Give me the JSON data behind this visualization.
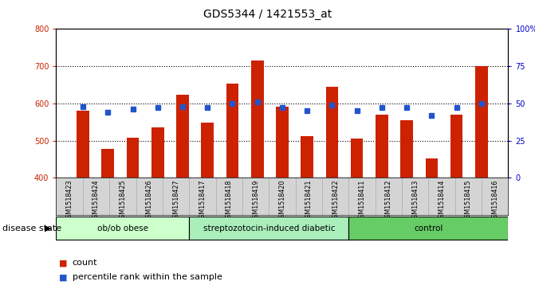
{
  "title": "GDS5344 / 1421553_at",
  "samples": [
    "GSM1518423",
    "GSM1518424",
    "GSM1518425",
    "GSM1518426",
    "GSM1518427",
    "GSM1518417",
    "GSM1518418",
    "GSM1518419",
    "GSM1518420",
    "GSM1518421",
    "GSM1518422",
    "GSM1518411",
    "GSM1518412",
    "GSM1518413",
    "GSM1518414",
    "GSM1518415",
    "GSM1518416"
  ],
  "counts": [
    580,
    478,
    507,
    535,
    623,
    548,
    653,
    716,
    590,
    511,
    645,
    505,
    570,
    554,
    452,
    570,
    700
  ],
  "percentiles": [
    48,
    44,
    46,
    47,
    48,
    47,
    50,
    51,
    47,
    45,
    49,
    45,
    47,
    47,
    42,
    47,
    50
  ],
  "groups": [
    {
      "label": "ob/ob obese",
      "start": 0,
      "end": 5,
      "color": "#ccffcc"
    },
    {
      "label": "streptozotocin-induced diabetic",
      "start": 5,
      "end": 11,
      "color": "#aaeebb"
    },
    {
      "label": "control",
      "start": 11,
      "end": 17,
      "color": "#66cc66"
    }
  ],
  "ylim_left": [
    400,
    800
  ],
  "ylim_right": [
    0,
    100
  ],
  "yticks_left": [
    400,
    500,
    600,
    700,
    800
  ],
  "yticks_right": [
    0,
    25,
    50,
    75,
    100
  ],
  "ytick_labels_right": [
    "0",
    "25",
    "50",
    "75",
    "100%"
  ],
  "bar_color": "#cc2200",
  "dot_color": "#2255cc",
  "bar_width": 0.5,
  "fig_bg_color": "#ffffff",
  "plot_bg_color": "#ffffff",
  "xtick_bg_color": "#d4d4d4",
  "disease_state_label": "disease state",
  "legend_count_label": "count",
  "legend_percentile_label": "percentile rank within the sample",
  "title_fontsize": 10,
  "axis_fontsize": 8,
  "tick_fontsize": 7,
  "legend_fontsize": 8
}
